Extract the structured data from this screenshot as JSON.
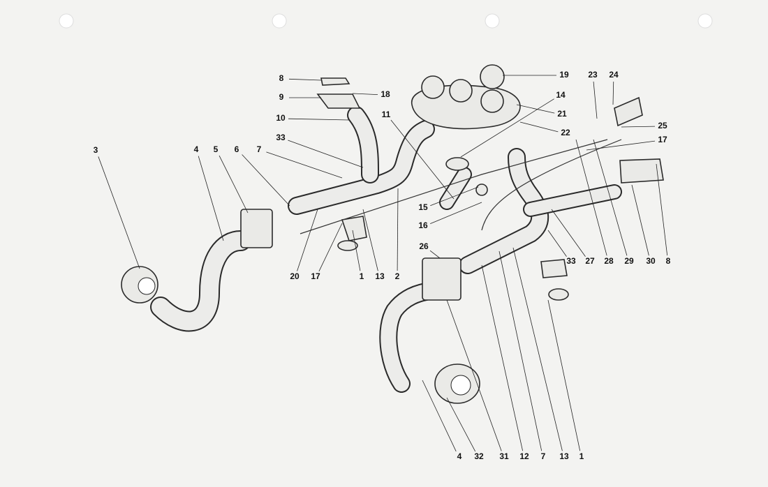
{
  "callouts": [
    "8",
    "9",
    "18",
    "10",
    "11",
    "19",
    "14",
    "21",
    "22",
    "23",
    "24",
    "25",
    "17",
    "3",
    "4",
    "5",
    "6",
    "7",
    "33",
    "15",
    "16",
    "20",
    "17",
    "1",
    "13",
    "2",
    "26",
    "33",
    "27",
    "28",
    "29",
    "30",
    "8",
    "4",
    "32",
    "31",
    "12",
    "7",
    "13",
    "1"
  ]
}
